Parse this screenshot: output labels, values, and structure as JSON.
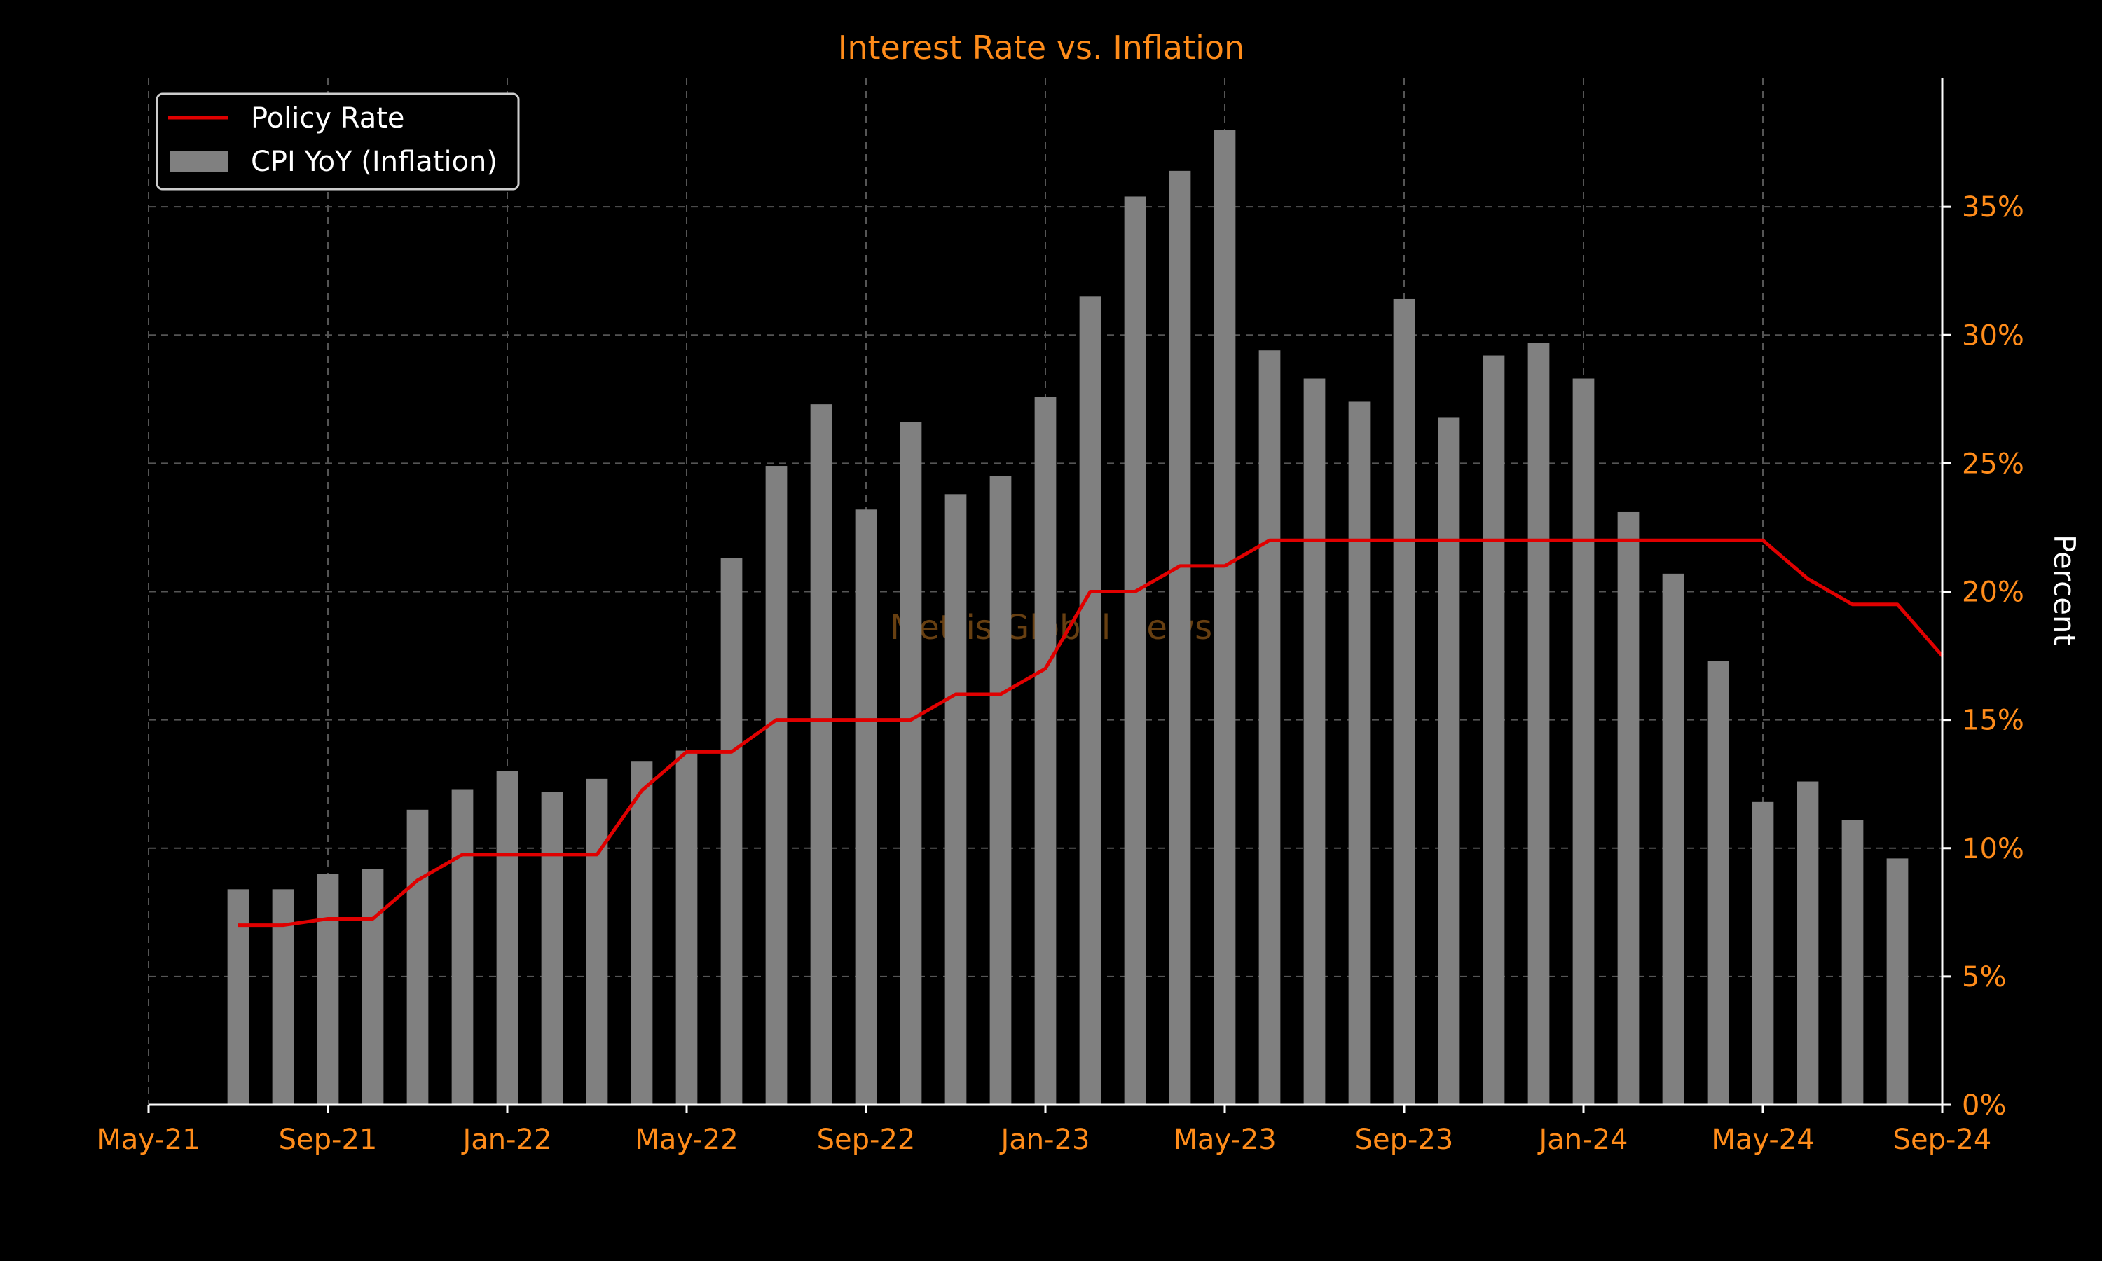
{
  "chart_data": {
    "type": "bar+line",
    "title": "Interest Rate vs. Inflation",
    "ylabel": "Percent",
    "y_axis_side": "right",
    "ylim": [
      0,
      40
    ],
    "y_ticks": [
      0,
      5,
      10,
      15,
      20,
      25,
      30,
      35
    ],
    "y_tick_labels": [
      "0%",
      "5%",
      "10%",
      "15%",
      "20%",
      "25%",
      "30%",
      "35%"
    ],
    "x_tick_labels": [
      "May-21",
      "Sep-21",
      "Jan-22",
      "May-22",
      "Sep-22",
      "Jan-23",
      "May-23",
      "Sep-23",
      "Jan-24",
      "May-24",
      "Sep-24"
    ],
    "x_ticks": [
      "2021-05",
      "2021-09",
      "2022-01",
      "2022-05",
      "2022-09",
      "2023-01",
      "2023-05",
      "2023-09",
      "2024-01",
      "2024-05",
      "2024-09"
    ],
    "grid": true,
    "legend_position": "top-left",
    "watermark": "Mettis Global News",
    "colors": {
      "background": "#000000",
      "text": "#ff8c1a",
      "bars": "#808080",
      "line": "#e00000",
      "grid": "#555555",
      "axis": "#ffffff"
    },
    "series": [
      {
        "name": "CPI YoY (Inflation)",
        "kind": "bar",
        "x": [
          "2021-07",
          "2021-08",
          "2021-09",
          "2021-10",
          "2021-11",
          "2021-12",
          "2022-01",
          "2022-02",
          "2022-03",
          "2022-04",
          "2022-05",
          "2022-06",
          "2022-07",
          "2022-08",
          "2022-09",
          "2022-10",
          "2022-11",
          "2022-12",
          "2023-01",
          "2023-02",
          "2023-03",
          "2023-04",
          "2023-05",
          "2023-06",
          "2023-07",
          "2023-08",
          "2023-09",
          "2023-10",
          "2023-11",
          "2023-12",
          "2024-01",
          "2024-02",
          "2024-03",
          "2024-04",
          "2024-05",
          "2024-06",
          "2024-07",
          "2024-08"
        ],
        "values": [
          8.4,
          8.4,
          9.0,
          9.2,
          11.5,
          12.3,
          13.0,
          12.2,
          12.7,
          13.4,
          13.8,
          21.3,
          24.9,
          27.3,
          23.2,
          26.6,
          23.8,
          24.5,
          27.6,
          31.5,
          35.4,
          36.4,
          38.0,
          29.4,
          28.3,
          27.4,
          31.4,
          26.8,
          29.2,
          29.7,
          28.3,
          23.1,
          20.7,
          17.3,
          11.8,
          12.6,
          11.1,
          9.6
        ]
      },
      {
        "name": "Policy Rate",
        "kind": "line",
        "x": [
          "2021-07",
          "2021-08",
          "2021-09",
          "2021-10",
          "2021-11",
          "2021-12",
          "2022-01",
          "2022-02",
          "2022-03",
          "2022-04",
          "2022-05",
          "2022-06",
          "2022-07",
          "2022-08",
          "2022-09",
          "2022-10",
          "2022-11",
          "2022-12",
          "2023-01",
          "2023-02",
          "2023-03",
          "2023-04",
          "2023-05",
          "2023-06",
          "2023-07",
          "2023-08",
          "2023-09",
          "2023-10",
          "2023-11",
          "2023-12",
          "2024-01",
          "2024-02",
          "2024-03",
          "2024-04",
          "2024-05",
          "2024-06",
          "2024-07",
          "2024-08",
          "2024-09"
        ],
        "values": [
          7.0,
          7.0,
          7.25,
          7.25,
          8.75,
          9.75,
          9.75,
          9.75,
          9.75,
          12.25,
          13.75,
          13.75,
          15.0,
          15.0,
          15.0,
          15.0,
          16.0,
          16.0,
          17.0,
          20.0,
          20.0,
          21.0,
          21.0,
          22.0,
          22.0,
          22.0,
          22.0,
          22.0,
          22.0,
          22.0,
          22.0,
          22.0,
          22.0,
          22.0,
          22.0,
          20.5,
          19.5,
          19.5,
          17.5
        ]
      }
    ]
  }
}
